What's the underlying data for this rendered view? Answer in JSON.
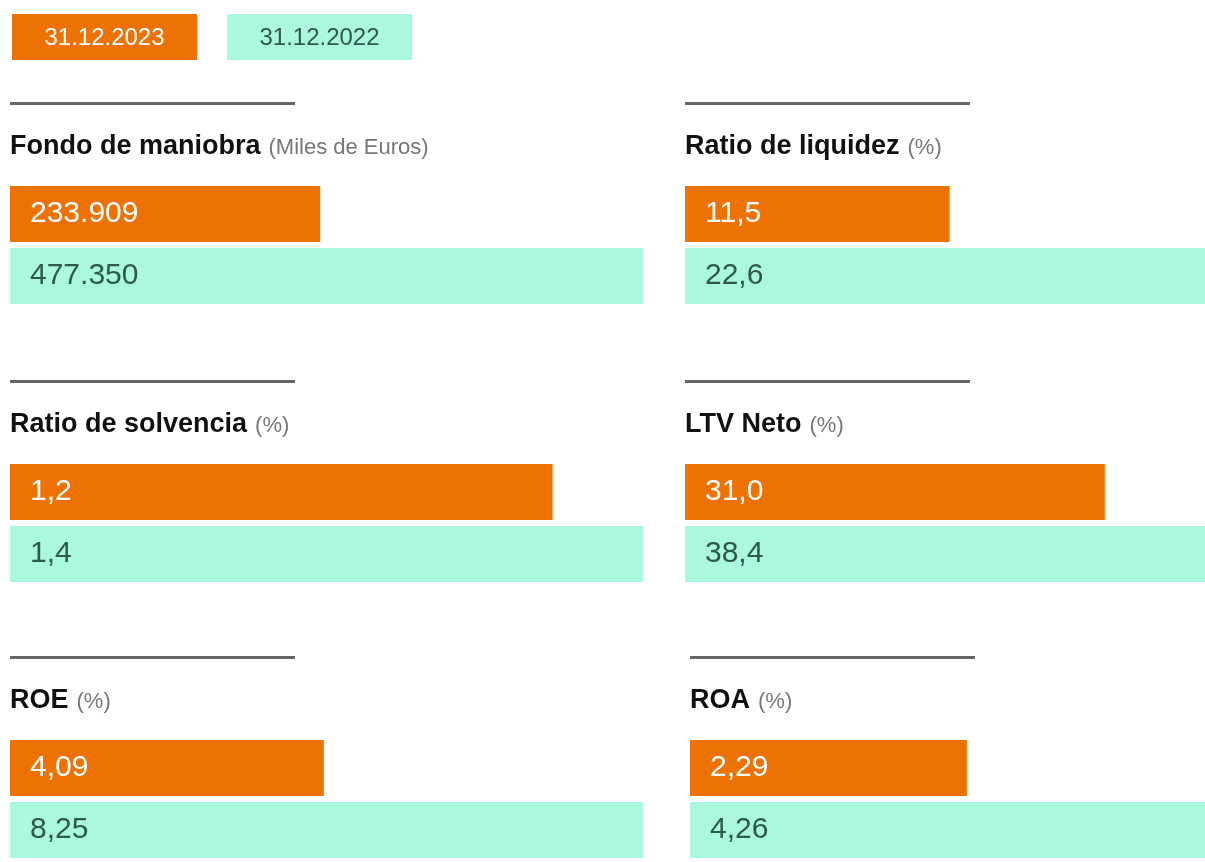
{
  "chart_data": [
    {
      "type": "bar",
      "orientation": "horizontal",
      "title": "Fondo de maniobra",
      "subtitle": "(Miles de Euros)",
      "legend": "top left",
      "tick_labels": false,
      "categories": [
        null
      ],
      "series": [
        {
          "name": "31.12.2023",
          "color": "#ee7203",
          "values": [
            233909
          ],
          "value_labels": [
            "233.909"
          ]
        },
        {
          "name": "31.12.2022",
          "color": "#abf8e0",
          "values": [
            477350
          ],
          "value_labels": [
            "477.350"
          ]
        }
      ]
    },
    {
      "type": "bar",
      "orientation": "horizontal",
      "title": "Ratio de liquidez",
      "subtitle": "(%)",
      "tick_labels": false,
      "categories": [
        null
      ],
      "series": [
        {
          "color": "#ee7203",
          "values": [
            11.5
          ],
          "value_labels": [
            "11,5"
          ]
        },
        {
          "color": "#abf8e0",
          "values": [
            22.6
          ],
          "value_labels": [
            "22,6"
          ]
        }
      ]
    },
    {
      "type": "bar",
      "orientation": "horizontal",
      "title": "Ratio de solvencia",
      "subtitle": "(%)",
      "tick_labels": false,
      "categories": [
        null
      ],
      "series": [
        {
          "color": "#ee7203",
          "values": [
            1.2
          ],
          "value_labels": [
            "1,2"
          ]
        },
        {
          "color": "#abf8e0",
          "values": [
            1.4
          ],
          "value_labels": [
            "1,4"
          ]
        }
      ]
    },
    {
      "type": "bar",
      "orientation": "horizontal",
      "title": "LTV Neto",
      "subtitle": "(%)",
      "tick_labels": false,
      "categories": [
        null
      ],
      "series": [
        {
          "color": "#ee7203",
          "values": [
            31.0
          ],
          "value_labels": [
            "31,0"
          ]
        },
        {
          "color": "#abf8e0",
          "values": [
            38.4
          ],
          "value_labels": [
            "38,4"
          ]
        }
      ]
    },
    {
      "type": "bar",
      "orientation": "horizontal",
      "title": "ROE",
      "subtitle": "(%)",
      "tick_labels": false,
      "categories": [
        null
      ],
      "series": [
        {
          "color": "#ee7203",
          "values": [
            4.09
          ],
          "value_labels": [
            "4,09"
          ]
        },
        {
          "color": "#abf8e0",
          "values": [
            8.25
          ],
          "value_labels": [
            "8,25"
          ]
        }
      ]
    },
    {
      "type": "bar",
      "orientation": "horizontal",
      "title": "ROA",
      "subtitle": "(%)",
      "tick_labels": false,
      "categories": [
        null
      ],
      "series": [
        {
          "color": "#ee7203",
          "values": [
            2.29
          ],
          "value_labels": [
            "2,29"
          ]
        },
        {
          "color": "#abf8e0",
          "values": [
            4.26
          ],
          "value_labels": [
            "4,26"
          ]
        }
      ]
    }
  ]
}
